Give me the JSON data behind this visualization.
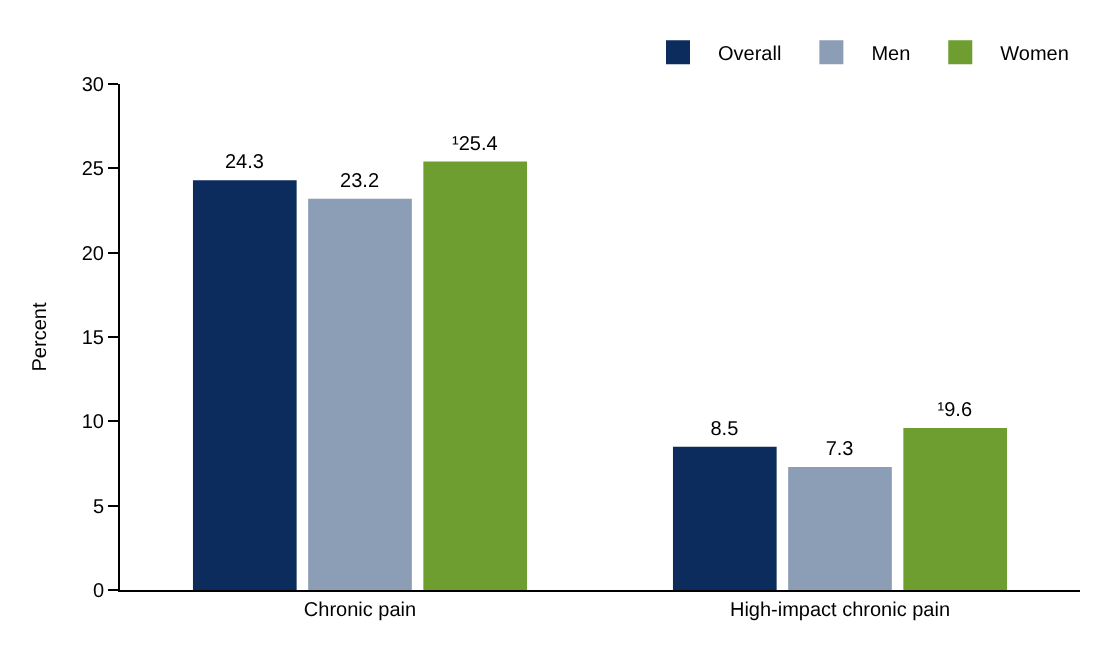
{
  "chart_data": {
    "type": "bar",
    "ylabel": "Percent",
    "categories": [
      "Chronic pain",
      "High-impact chronic pain"
    ],
    "series": [
      {
        "name": "Overall",
        "color": "#0b2c5c",
        "values": [
          24.3,
          8.5
        ],
        "value_labels": [
          "24.3",
          "8.5"
        ]
      },
      {
        "name": "Men",
        "color": "#8c9db6",
        "values": [
          23.2,
          7.3
        ],
        "value_labels": [
          "23.2",
          "7.3"
        ]
      },
      {
        "name": "Women",
        "color": "#6e9d30",
        "values": [
          25.4,
          9.6
        ],
        "value_labels": [
          "¹25.4",
          "¹9.6"
        ]
      }
    ],
    "ylim": [
      0,
      30
    ],
    "yticks": [
      0,
      5,
      10,
      15,
      20,
      25,
      30
    ],
    "grid": false,
    "legend": "top right"
  }
}
